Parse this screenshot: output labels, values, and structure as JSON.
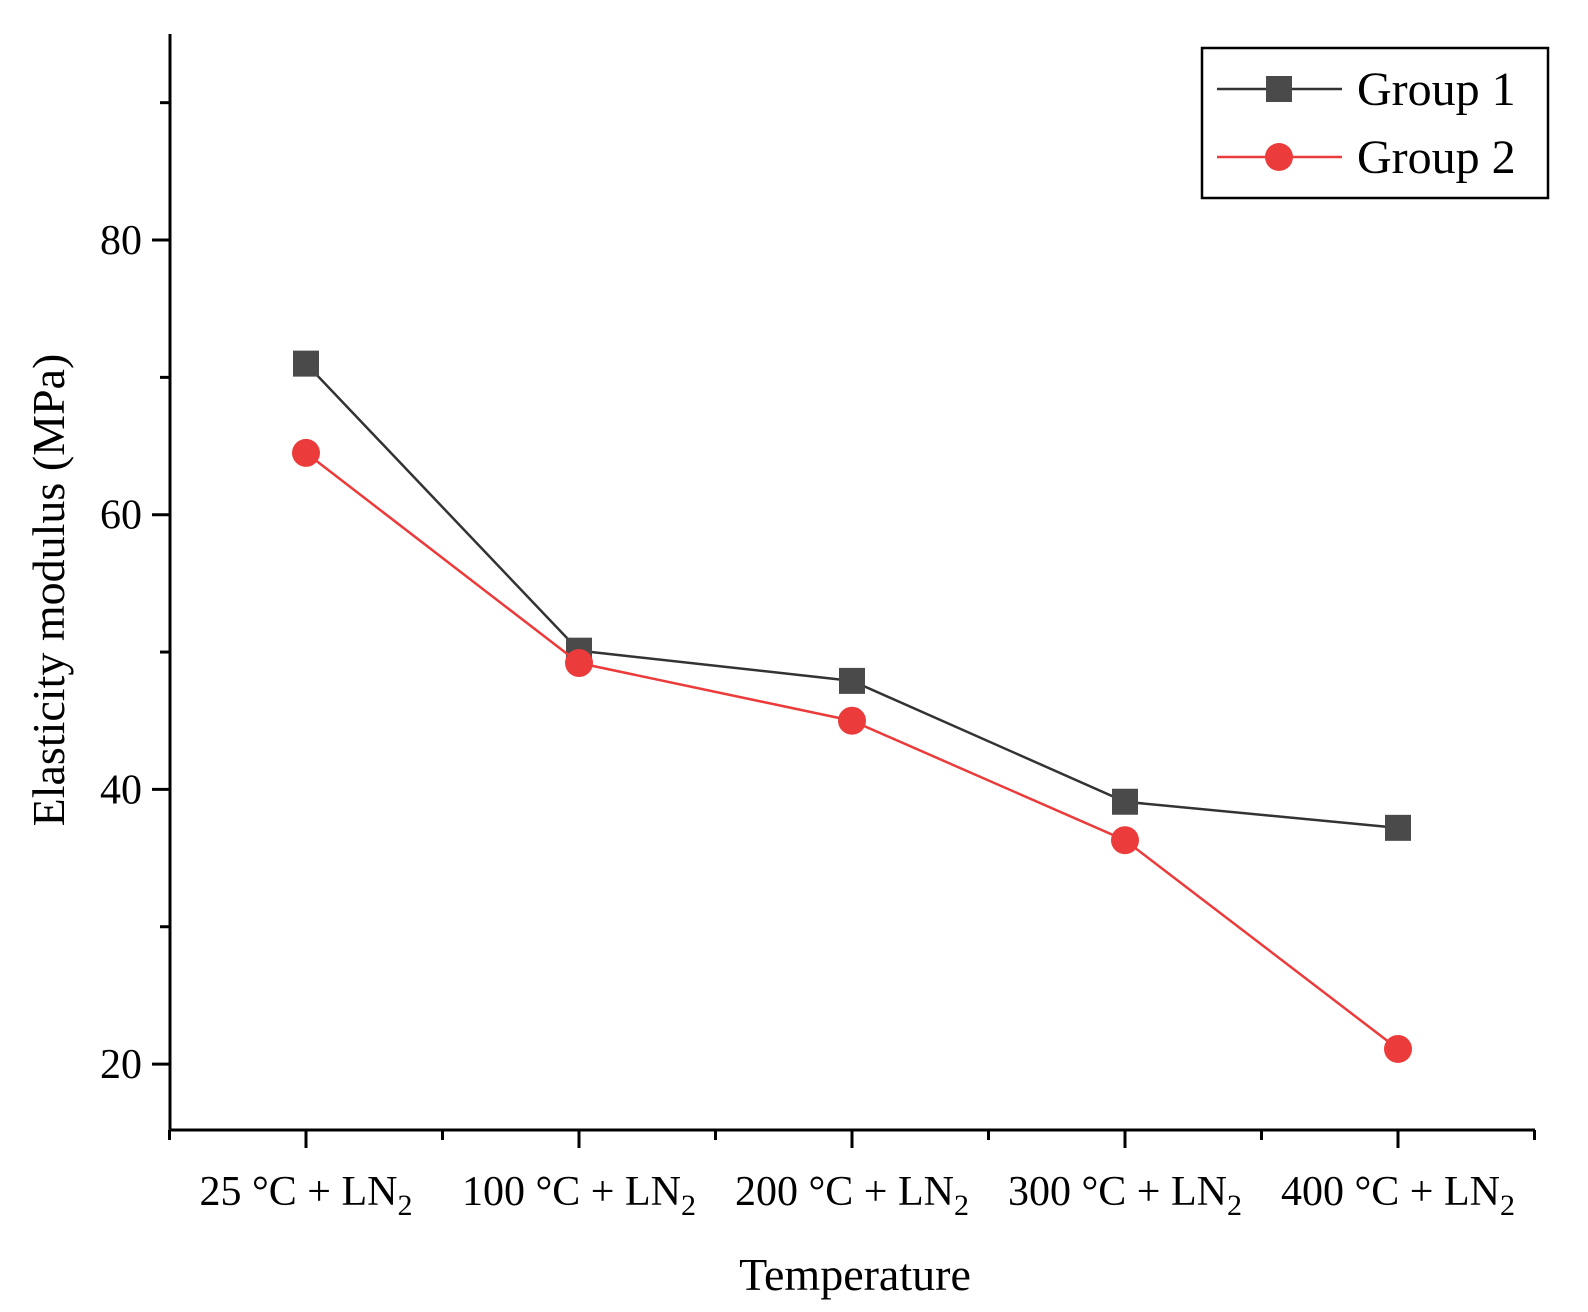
{
  "chart_data": {
    "type": "line",
    "title": "",
    "xlabel": "Temperature",
    "ylabel": "Elasticity modulus (MPa)",
    "categories": [
      {
        "main": "25 °C + LN",
        "sub": "2"
      },
      {
        "main": "100 °C + LN",
        "sub": "2"
      },
      {
        "main": "200 °C + LN",
        "sub": "2"
      },
      {
        "main": "300 °C + LN",
        "sub": "2"
      },
      {
        "main": "400 °C + LN",
        "sub": "2"
      }
    ],
    "ylim": [
      15.2,
      95
    ],
    "yticks_major": [
      20,
      40,
      60,
      80
    ],
    "yticks_minor": [
      30,
      50,
      70,
      90
    ],
    "grid": false,
    "legend_position": "top-right",
    "series": [
      {
        "name": "Group 1",
        "marker": "square",
        "color": "#4a4a4a",
        "line_color": "#333333",
        "values": [
          71.0,
          50.1,
          47.9,
          39.1,
          37.2
        ]
      },
      {
        "name": "Group 2",
        "marker": "circle",
        "color": "#ec3b3b",
        "line_color": "#ec3b3b",
        "values": [
          64.5,
          49.2,
          45.0,
          36.3,
          21.1
        ]
      }
    ]
  }
}
